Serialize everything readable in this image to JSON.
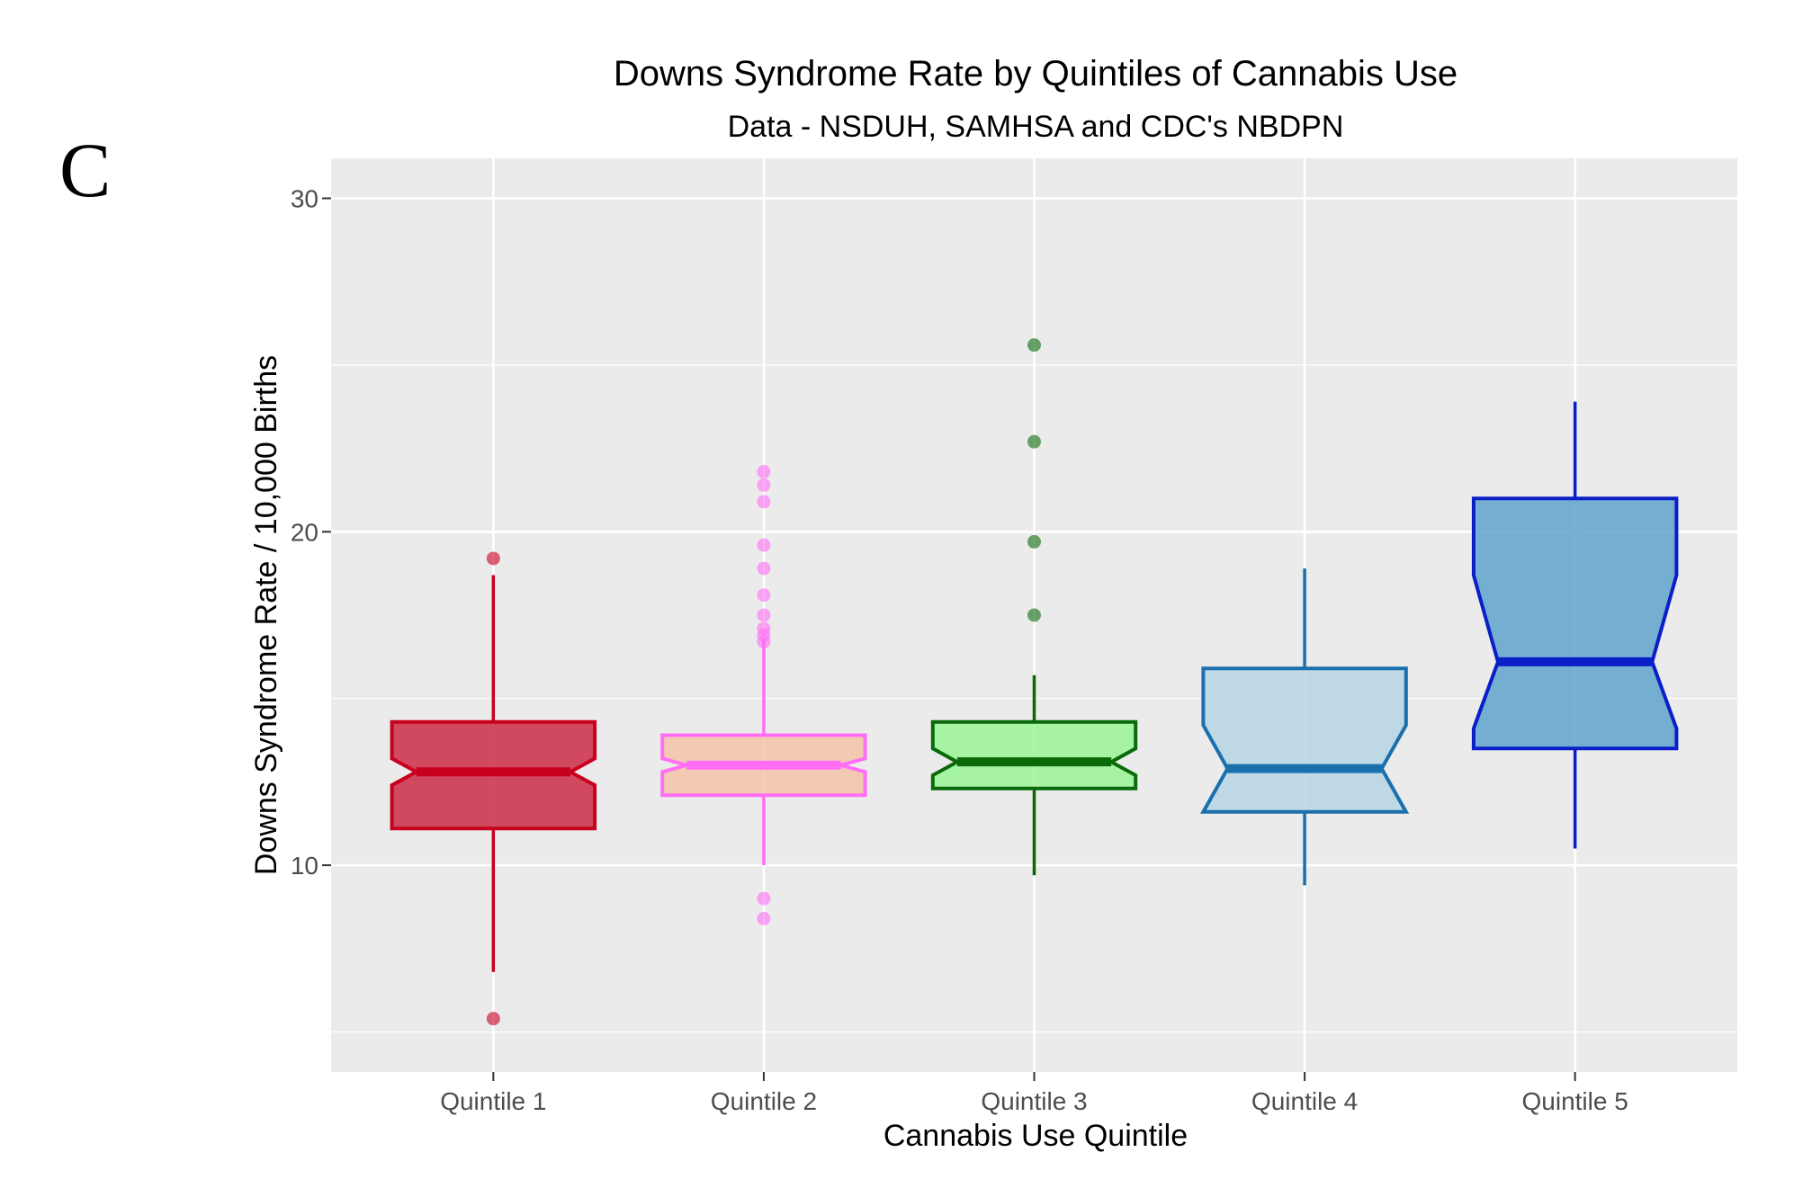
{
  "panel_label": "C",
  "chart_data": {
    "type": "boxplot",
    "title": "Downs Syndrome Rate by Quintiles of Cannabis Use",
    "subtitle": "Data - NSDUH, SAMHSA and CDC's NBDPN",
    "xlabel": "Cannabis Use Quintile",
    "ylabel": "Downs Syndrome Rate / 10,000 Births",
    "ylim": [
      3.8,
      31.2
    ],
    "y_ticks": [
      10,
      20,
      30
    ],
    "y_tick_labels": [
      "10",
      "20",
      "30"
    ],
    "y_minor_gridlines": [
      5,
      15,
      25
    ],
    "grid": true,
    "notched": true,
    "categories": [
      "Quintile 1",
      "Quintile 2",
      "Quintile 3",
      "Quintile 4",
      "Quintile 5"
    ],
    "boxes": [
      {
        "name": "Quintile 1",
        "whisker_low": 6.8,
        "q1": 11.1,
        "median": 12.8,
        "q3": 14.3,
        "whisker_high": 18.7,
        "notch_low": 12.4,
        "notch_high": 13.2,
        "outliers": [
          19.2,
          5.4
        ],
        "fill": "#cd2d46",
        "stroke": "#c8001e"
      },
      {
        "name": "Quintile 2",
        "whisker_low": 10.0,
        "q1": 12.1,
        "median": 13.0,
        "q3": 13.9,
        "whisker_high": 16.8,
        "notch_low": 12.8,
        "notch_high": 13.2,
        "outliers": [
          21.8,
          21.4,
          20.9,
          19.6,
          18.9,
          18.1,
          17.5,
          17.1,
          16.9,
          16.7,
          9.0,
          8.4
        ],
        "fill": "#f3c3a8",
        "stroke": "#ff6ef5"
      },
      {
        "name": "Quintile 3",
        "whisker_low": 9.7,
        "q1": 12.3,
        "median": 13.1,
        "q3": 14.3,
        "whisker_high": 15.7,
        "notch_low": 12.7,
        "notch_high": 13.5,
        "outliers": [
          25.6,
          22.7,
          19.7,
          17.5
        ],
        "fill": "#99f596",
        "stroke": "#0a6a0a"
      },
      {
        "name": "Quintile 4",
        "whisker_low": 9.4,
        "q1": 11.6,
        "median": 12.9,
        "q3": 15.9,
        "whisker_high": 18.9,
        "notch_low": 11.6,
        "notch_high": 14.2,
        "outliers": [],
        "fill": "#b6d5e5",
        "stroke": "#1a6fad"
      },
      {
        "name": "Quintile 5",
        "whisker_low": 10.5,
        "q1": 13.5,
        "median": 16.1,
        "q3": 21.0,
        "whisker_high": 23.9,
        "notch_low": 14.1,
        "notch_high": 18.7,
        "outliers": [],
        "fill": "#5fa3cb",
        "stroke": "#0a1fc8"
      }
    ]
  }
}
